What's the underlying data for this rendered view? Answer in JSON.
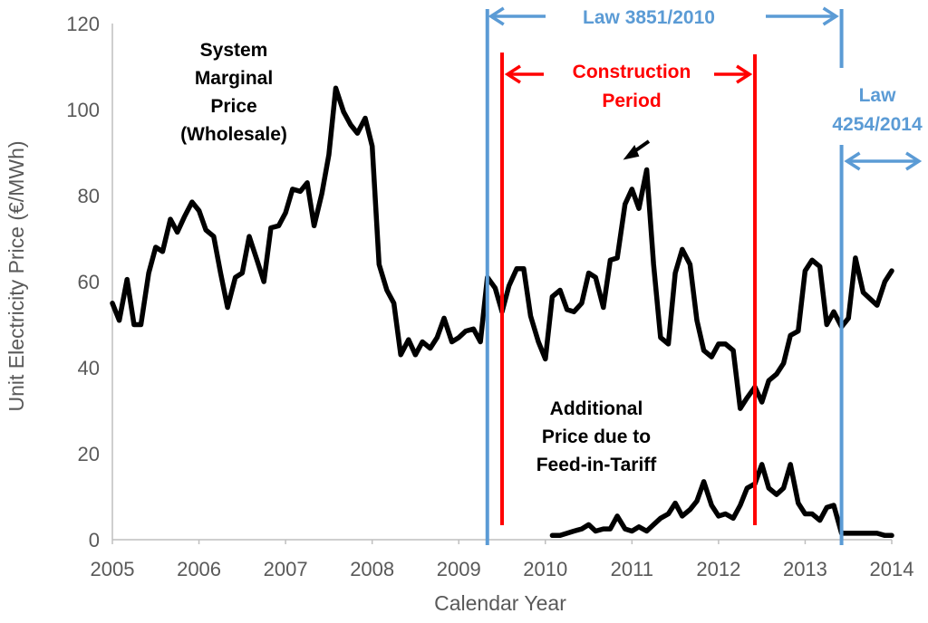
{
  "chart_data": {
    "type": "line",
    "xlabel": "Calendar Year",
    "ylabel": "Unit Electricity Price (€/MWh)",
    "xlim": [
      2005,
      2014
    ],
    "ylim": [
      0,
      120
    ],
    "x_ticks": [
      "2005",
      "2006",
      "2007",
      "2008",
      "2009",
      "2010",
      "2011",
      "2012",
      "2013",
      "2014"
    ],
    "y_ticks": [
      "0",
      "20",
      "40",
      "60",
      "80",
      "100",
      "120"
    ],
    "grid": false,
    "series": [
      {
        "name": "System Marginal Price (Wholesale)",
        "color": "#000000",
        "x": [
          2005.0,
          2005.08,
          2005.17,
          2005.25,
          2005.33,
          2005.42,
          2005.5,
          2005.58,
          2005.67,
          2005.75,
          2005.83,
          2005.92,
          2006.0,
          2006.08,
          2006.17,
          2006.25,
          2006.33,
          2006.42,
          2006.5,
          2006.58,
          2006.67,
          2006.75,
          2006.83,
          2006.92,
          2007.0,
          2007.08,
          2007.17,
          2007.25,
          2007.33,
          2007.42,
          2007.5,
          2007.58,
          2007.67,
          2007.75,
          2007.83,
          2007.92,
          2008.0,
          2008.08,
          2008.17,
          2008.25,
          2008.33,
          2008.42,
          2008.5,
          2008.58,
          2008.67,
          2008.75,
          2008.83,
          2008.92,
          2009.0,
          2009.08,
          2009.17,
          2009.25,
          2009.33,
          2009.42,
          2009.5,
          2009.58,
          2009.67,
          2009.75,
          2009.83,
          2009.92,
          2010.0,
          2010.08,
          2010.17,
          2010.25,
          2010.33,
          2010.42,
          2010.5,
          2010.58,
          2010.67,
          2010.75,
          2010.83,
          2010.92,
          2011.0,
          2011.08,
          2011.17,
          2011.25,
          2011.33,
          2011.42,
          2011.5,
          2011.58,
          2011.67,
          2011.75,
          2011.83,
          2011.92,
          2012.0,
          2012.08,
          2012.17,
          2012.25,
          2012.33,
          2012.42,
          2012.5,
          2012.58,
          2012.67,
          2012.75,
          2012.83,
          2012.92,
          2013.0,
          2013.08,
          2013.17,
          2013.25,
          2013.33,
          2013.42,
          2013.5,
          2013.58,
          2013.67,
          2013.75,
          2013.83,
          2013.92,
          2014.0
        ],
        "values": [
          55,
          51,
          60.5,
          50,
          50,
          62,
          68,
          67,
          74.5,
          71.5,
          75,
          78.5,
          76.5,
          72,
          70.5,
          62,
          54,
          61,
          62,
          70.5,
          65,
          60,
          72.5,
          73,
          76,
          81.5,
          81,
          83,
          73,
          80.5,
          89.5,
          105,
          99.5,
          96.5,
          94.5,
          98,
          91.5,
          64,
          58,
          55,
          43,
          46.5,
          43,
          46,
          44.5,
          47,
          51.5,
          46,
          47,
          48.5,
          49,
          46,
          61,
          58.5,
          53,
          59,
          63,
          63,
          52,
          46,
          42,
          56.5,
          58,
          53.5,
          53,
          55,
          62,
          61,
          54,
          65,
          65.5,
          78,
          81.5,
          77,
          86,
          64,
          47,
          45.5,
          62,
          67.5,
          64,
          51,
          44,
          42.5,
          45.5,
          45.5,
          44,
          30.5,
          33,
          35.5,
          32,
          37,
          38.5,
          41,
          47.5,
          48.5,
          62.5,
          65,
          63.5,
          50,
          53,
          49.5,
          51.5,
          65.5,
          57.5,
          56,
          54.5,
          60,
          62.5
        ]
      },
      {
        "name": "Additional Price due to Feed-in-Tariff",
        "color": "#000000",
        "x": [
          2010.08,
          2010.17,
          2010.25,
          2010.33,
          2010.42,
          2010.5,
          2010.58,
          2010.67,
          2010.75,
          2010.83,
          2010.92,
          2011.0,
          2011.08,
          2011.17,
          2011.25,
          2011.33,
          2011.42,
          2011.5,
          2011.58,
          2011.67,
          2011.75,
          2011.83,
          2011.92,
          2012.0,
          2012.08,
          2012.17,
          2012.25,
          2012.33,
          2012.42,
          2012.5,
          2012.58,
          2012.67,
          2012.75,
          2012.83,
          2012.92,
          2013.0,
          2013.08,
          2013.17,
          2013.25,
          2013.33,
          2013.42,
          2013.5,
          2013.58,
          2013.67,
          2013.75,
          2013.83,
          2013.92,
          2014.0
        ],
        "values": [
          1,
          1,
          1.5,
          2,
          2.5,
          3.5,
          2,
          2.5,
          2.5,
          5.5,
          2.5,
          2,
          3,
          2,
          3.5,
          5,
          6,
          8.5,
          5.5,
          7,
          9,
          13.5,
          8,
          5.5,
          6,
          5,
          8,
          12,
          13,
          17.5,
          12,
          10.5,
          12,
          17.5,
          8.5,
          6,
          6,
          4.5,
          7.5,
          8,
          1.5,
          1.5,
          1.5,
          1.5,
          1.5,
          1.5,
          1,
          1
        ]
      }
    ],
    "vertical_lines": [
      {
        "name": "law-3851-start",
        "x": 2009.33,
        "color": "#5b9bd5"
      },
      {
        "name": "construction-start",
        "x": 2009.5,
        "color": "#ff0000"
      },
      {
        "name": "construction-end",
        "x": 2012.42,
        "color": "#ff0000"
      },
      {
        "name": "law-4254-start",
        "x": 2013.42,
        "color": "#5b9bd5"
      }
    ],
    "annotations": {
      "smp": [
        "System",
        "Marginal",
        "Price",
        "(Wholesale)"
      ],
      "law1": "Law 3851/2010",
      "construction": [
        "Construction",
        "Period"
      ],
      "law2": [
        "Law",
        "4254/2014"
      ],
      "fit": [
        "Additional",
        "Price due to",
        "Feed-in-Tariff"
      ]
    },
    "colors": {
      "law": "#5b9bd5",
      "construction": "#ff0000",
      "line": "#000000",
      "axis_text": "#595959",
      "axis_line": "#bfbfbf"
    }
  }
}
